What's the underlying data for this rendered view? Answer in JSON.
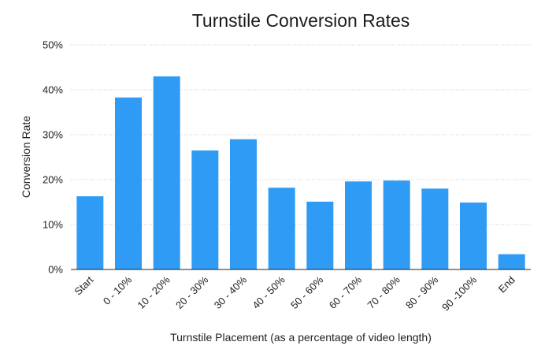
{
  "chart_data": {
    "type": "bar",
    "title": "Turnstile Conversion Rates",
    "xlabel": "Turnstile Placement (as a percentage of video length)",
    "ylabel": "Conversion Rate",
    "categories": [
      "Start",
      "0 - 10%",
      "10 - 20%",
      "20 - 30%",
      "30 - 40%",
      "40 - 50%",
      "50 - 60%",
      "60 - 70%",
      "70 - 80%",
      "80 - 90%",
      "90 -100%",
      "End"
    ],
    "values": [
      16.3,
      38.3,
      43.0,
      26.5,
      29.0,
      18.2,
      15.1,
      19.6,
      19.8,
      18.0,
      14.9,
      3.4
    ],
    "ylim": [
      0,
      50
    ],
    "yticks": [
      0,
      10,
      20,
      30,
      40,
      50
    ],
    "ytick_labels": [
      "0%",
      "10%",
      "20%",
      "30%",
      "40%",
      "50%"
    ],
    "grid": true,
    "bar_color": "#2f9bf5"
  }
}
